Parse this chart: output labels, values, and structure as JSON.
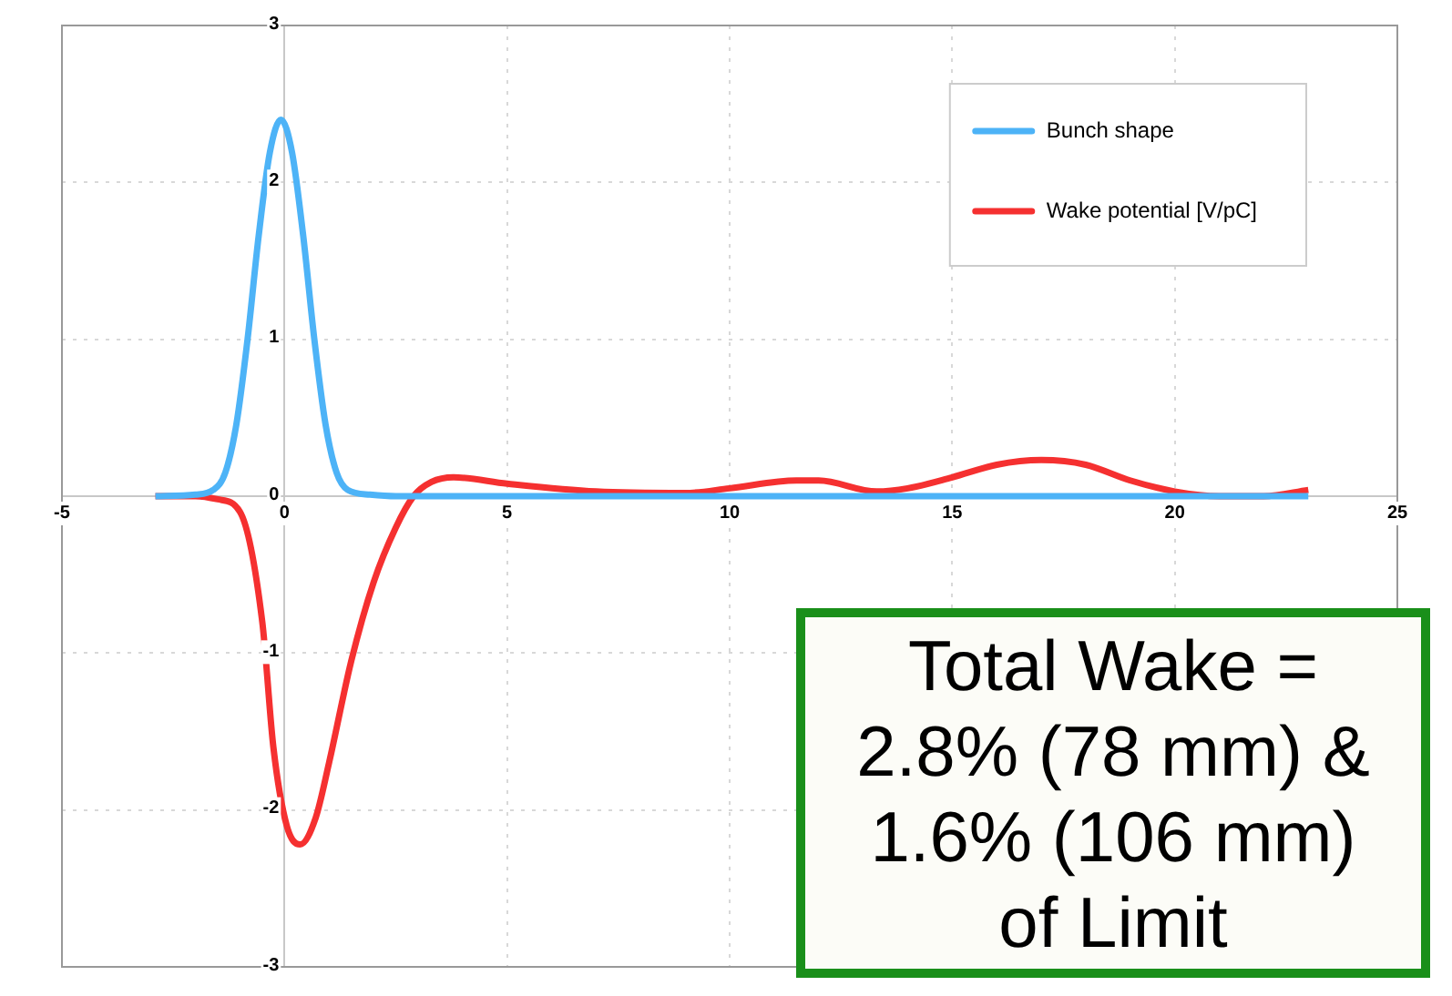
{
  "chart_data": {
    "type": "line",
    "xlim": [
      -5,
      25
    ],
    "ylim": [
      -3,
      3
    ],
    "xticks": [
      -5,
      0,
      5,
      10,
      15,
      20,
      25
    ],
    "yticks": [
      -3,
      -2,
      -1,
      0,
      1,
      2,
      3
    ],
    "grid": true,
    "legend": "top right",
    "marker": "none",
    "line_style": "solid",
    "annotations": [
      "Total Wake = 2.8% (78 mm) & 1.6% (106 mm) of Limit"
    ],
    "series": [
      {
        "name": "Bunch shape",
        "color": "#4db3f7",
        "x": [
          -2.9,
          -2,
          -1.6,
          -1.33,
          -1.08,
          -0.83,
          -0.58,
          -0.33,
          -0.08,
          0.17,
          0.42,
          0.67,
          0.92,
          1.17,
          1.42,
          1.92,
          2.5,
          5,
          10,
          15,
          20,
          23
        ],
        "values": [
          0,
          0.01,
          0.04,
          0.15,
          0.46,
          1.0,
          1.66,
          2.19,
          2.4,
          2.19,
          1.66,
          1.0,
          0.46,
          0.15,
          0.04,
          0.01,
          0,
          0,
          0,
          0,
          0,
          0
        ]
      },
      {
        "name": "Wake potential [V/pC]",
        "color": "#f53030",
        "x": [
          -2.9,
          -2,
          -1.5,
          -1,
          -0.5,
          -0.25,
          0.05,
          0.35,
          0.7,
          1,
          1.5,
          2,
          2.5,
          2.9,
          3.3,
          3.8,
          5,
          7,
          9,
          10,
          11.5,
          12,
          13.3,
          14,
          15,
          16,
          17,
          18,
          19,
          20,
          21,
          22,
          23
        ],
        "values": [
          0,
          0,
          -0.02,
          -0.1,
          -0.8,
          -1.6,
          -2.1,
          -2.22,
          -2.05,
          -1.7,
          -1.05,
          -0.55,
          -0.2,
          0,
          0.09,
          0.12,
          0.08,
          0.03,
          0.02,
          0.05,
          0.1,
          0.1,
          0.03,
          0.05,
          0.12,
          0.2,
          0.23,
          0.2,
          0.1,
          0.03,
          0,
          0,
          0.04
        ]
      }
    ]
  }
}
